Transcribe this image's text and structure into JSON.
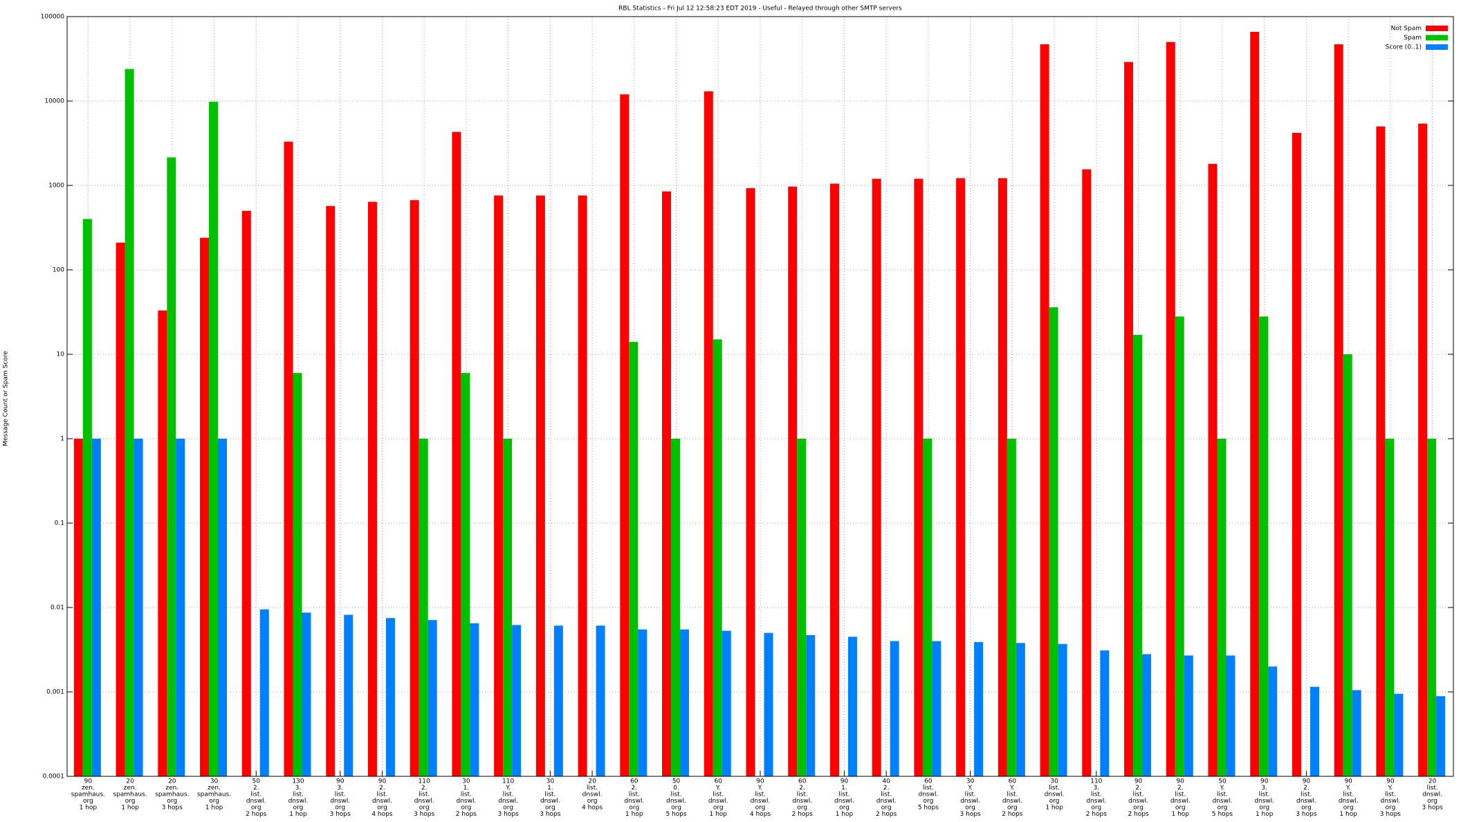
{
  "chart_data": {
    "type": "bar",
    "title": "RBL Statistics - Fri Jul 12 12:58:23 EDT 2019 - Useful - Relayed through other SMTP servers",
    "y_label": "Message Count or Spam Score",
    "log_scale": true,
    "grid": true,
    "legend": "top-right",
    "ylim": [
      0.0001,
      100000
    ],
    "yticks": [
      0.0001,
      0.001,
      0.01,
      0.1,
      1,
      10,
      100,
      1000,
      10000,
      100000
    ],
    "categories": [
      [
        "90",
        "zen.",
        "spamhaus.",
        "org",
        "1 hop"
      ],
      [
        "20",
        "zen.",
        "spamhaus.",
        "org",
        "1 hop"
      ],
      [
        "20",
        "zen.",
        "spamhaus.",
        "org",
        "3 hops"
      ],
      [
        "30",
        "zen.",
        "spamhaus.",
        "org",
        "1 hop"
      ],
      [
        "50",
        "2.",
        "list.",
        "dnswl.",
        "org",
        "2 hops"
      ],
      [
        "130",
        "3.",
        "list.",
        "dnswl.",
        "org",
        "1 hop"
      ],
      [
        "90",
        "3.",
        "list.",
        "dnswl.",
        "org",
        "3 hops"
      ],
      [
        "90",
        "2.",
        "list.",
        "dnswl.",
        "org",
        "4 hops"
      ],
      [
        "110",
        "2.",
        "list.",
        "dnswl.",
        "org",
        "3 hops"
      ],
      [
        "30",
        "1.",
        "list.",
        "dnswl.",
        "org",
        "2 hops"
      ],
      [
        "110",
        "Y.",
        "list.",
        "dnswl.",
        "org",
        "3 hops"
      ],
      [
        "30",
        "1.",
        "list.",
        "dnswl.",
        "org",
        "3 hops"
      ],
      [
        "20",
        "list.",
        "dnswl.",
        "org",
        "4 hops"
      ],
      [
        "60",
        "2.",
        "list.",
        "dnswl.",
        "org",
        "1 hop"
      ],
      [
        "50",
        "0.",
        "list.",
        "dnswl.",
        "org",
        "5 hops"
      ],
      [
        "60",
        "Y.",
        "list.",
        "dnswl.",
        "org",
        "1 hop"
      ],
      [
        "90",
        "Y.",
        "list.",
        "dnswl.",
        "org",
        "4 hops"
      ],
      [
        "60",
        "2.",
        "list.",
        "dnswl.",
        "org",
        "2 hops"
      ],
      [
        "90",
        "1.",
        "list.",
        "dnswl.",
        "org",
        "1 hop"
      ],
      [
        "40",
        "2.",
        "list.",
        "dnswl.",
        "org",
        "2 hops"
      ],
      [
        "60",
        "list.",
        "dnswl.",
        "org",
        "5 hops"
      ],
      [
        "30",
        "Y.",
        "list.",
        "dnswl.",
        "org",
        "3 hops"
      ],
      [
        "60",
        "Y.",
        "list.",
        "dnswl.",
        "org",
        "2 hops"
      ],
      [
        "30",
        "list.",
        "dnswl.",
        "org",
        "1 hop"
      ],
      [
        "110",
        "3.",
        "list.",
        "dnswl.",
        "org",
        "2 hops"
      ],
      [
        "90",
        "2.",
        "list.",
        "dnswl.",
        "org",
        "2 hops"
      ],
      [
        "90",
        "2.",
        "list.",
        "dnswl.",
        "org",
        "1 hop"
      ],
      [
        "50",
        "Y.",
        "list.",
        "dnswl.",
        "org",
        "5 hops"
      ],
      [
        "90",
        "3.",
        "list.",
        "dnswl.",
        "org",
        "1 hop"
      ],
      [
        "90",
        "2.",
        "list.",
        "dnswl.",
        "org",
        "3 hops"
      ],
      [
        "90",
        "Y.",
        "list.",
        "dnswl.",
        "org",
        "1 hop"
      ],
      [
        "90",
        "Y.",
        "list.",
        "dnswl.",
        "org",
        "3 hops"
      ],
      [
        "20",
        "list.",
        "dnswl.",
        "org",
        "3 hops"
      ]
    ],
    "series": [
      {
        "name": "Not Spam",
        "color": "#ff0000",
        "values": [
          1,
          210,
          33,
          240,
          500,
          3300,
          570,
          640,
          670,
          4300,
          760,
          760,
          760,
          12000,
          850,
          13000,
          930,
          970,
          1050,
          1200,
          1200,
          1220,
          1220,
          47000,
          1550,
          29000,
          50000,
          1800,
          66000,
          4200,
          47000,
          5000,
          5400
        ]
      },
      {
        "name": "Spam",
        "color": "#00c000",
        "values": [
          400,
          24000,
          2150,
          9800,
          null,
          6,
          null,
          null,
          1,
          6,
          1,
          null,
          null,
          14,
          1,
          15,
          null,
          1,
          null,
          null,
          1,
          null,
          1,
          36,
          null,
          17,
          28,
          1,
          28,
          null,
          10,
          1,
          1
        ]
      },
      {
        "name": "Score (0..1)",
        "color": "#0080ff",
        "values": [
          1,
          1,
          1,
          1,
          0.0095,
          0.0087,
          0.0082,
          0.0075,
          0.0071,
          0.0065,
          0.0062,
          0.0061,
          0.0061,
          0.0055,
          0.0055,
          0.0053,
          0.005,
          0.0047,
          0.0045,
          0.004,
          0.004,
          0.0039,
          0.0038,
          0.0037,
          0.0031,
          0.0028,
          0.0027,
          0.0027,
          0.002,
          0.00115,
          0.00105,
          0.00095,
          0.00089
        ]
      }
    ]
  }
}
